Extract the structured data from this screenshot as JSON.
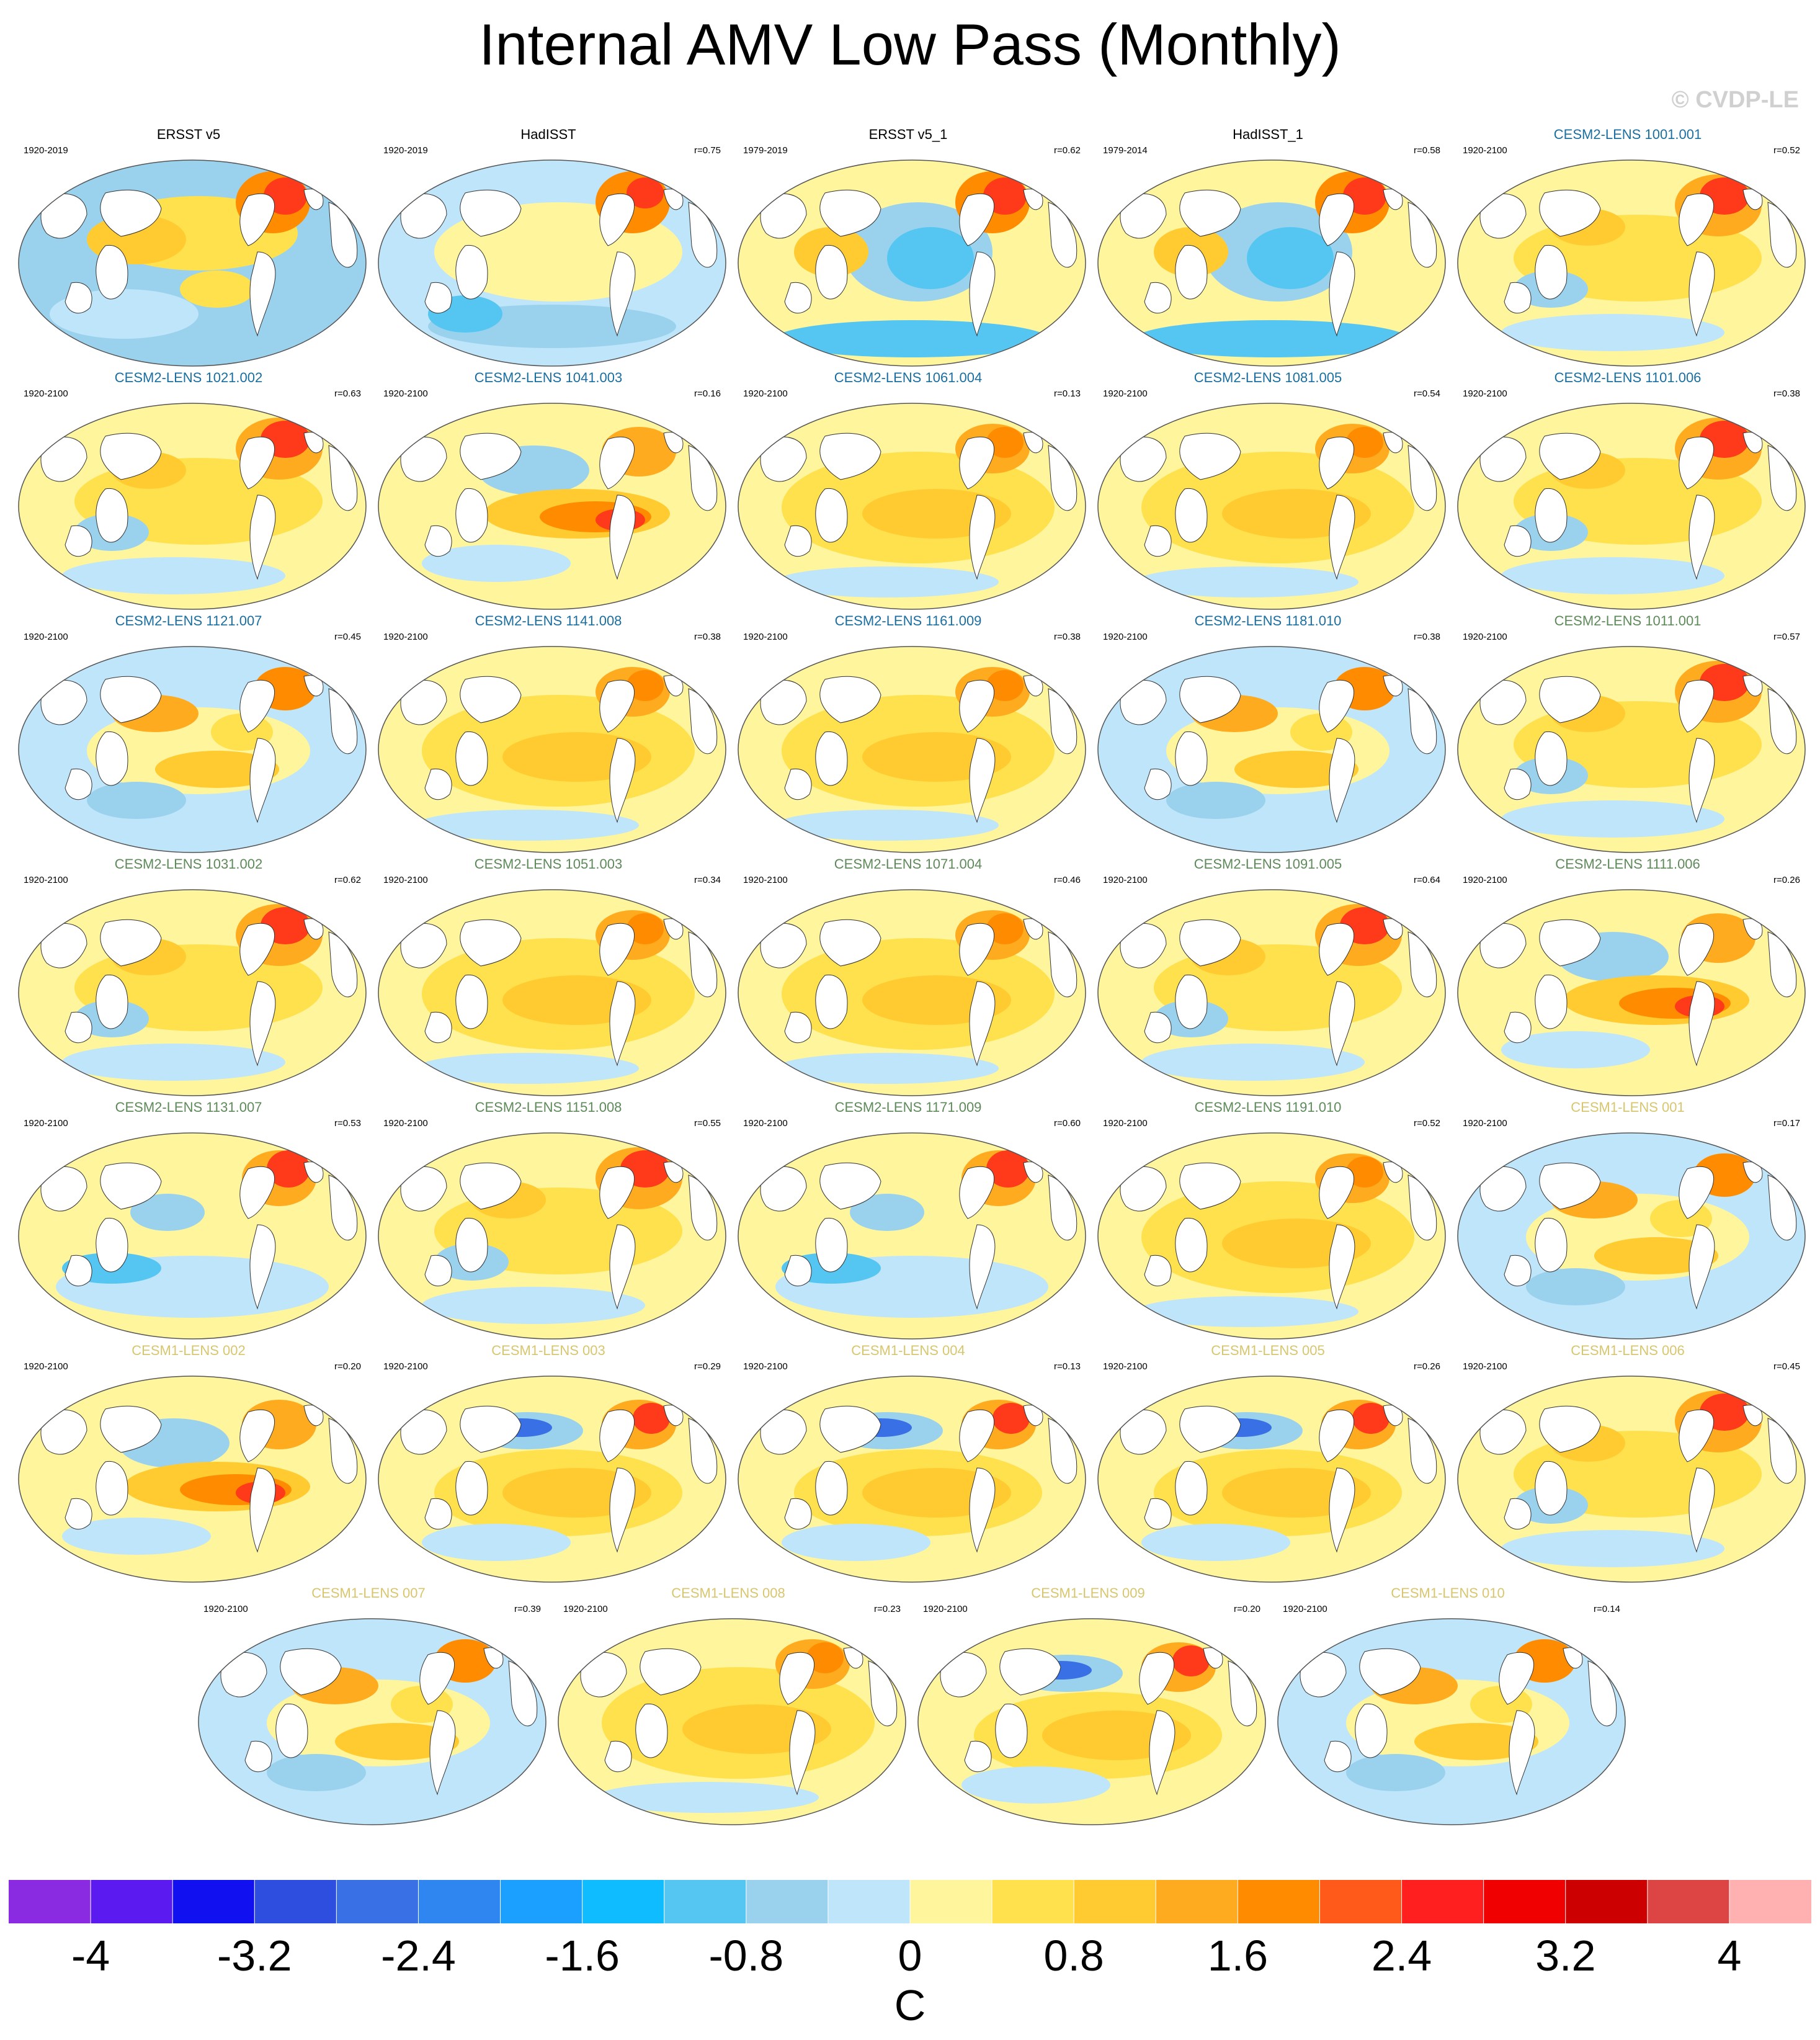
{
  "title": "Internal AMV Low Pass (Monthly)",
  "watermark": "© CVDP-LE",
  "colors": {
    "obs_title": "#000000",
    "cesm2_group_a": "#1a6ea0",
    "cesm2_group_b": "#5e8a5a",
    "cesm1": "#d8c66e"
  },
  "panels": [
    {
      "name": "ERSST v5",
      "years": "1920-2019",
      "r": "",
      "group": "obs",
      "pattern": "obs1"
    },
    {
      "name": "HadISST",
      "years": "1920-2019",
      "r": "r=0.75",
      "group": "obs",
      "pattern": "obs2"
    },
    {
      "name": "ERSST v5_1",
      "years": "1979-2019",
      "r": "r=0.62",
      "group": "obs",
      "pattern": "obs3"
    },
    {
      "name": "HadISST_1",
      "years": "1979-2014",
      "r": "r=0.58",
      "group": "obs",
      "pattern": "obs3"
    },
    {
      "name": "CESM2-LENS 1001.001",
      "years": "1920-2100",
      "r": "r=0.52",
      "group": "cesm2_group_a",
      "pattern": "warmN"
    },
    {
      "name": "CESM2-LENS 1021.002",
      "years": "1920-2100",
      "r": "r=0.63",
      "group": "cesm2_group_a",
      "pattern": "warmN"
    },
    {
      "name": "CESM2-LENS 1041.003",
      "years": "1920-2100",
      "r": "r=0.16",
      "group": "cesm2_group_a",
      "pattern": "enso"
    },
    {
      "name": "CESM2-LENS 1061.004",
      "years": "1920-2100",
      "r": "r=0.13",
      "group": "cesm2_group_a",
      "pattern": "warm"
    },
    {
      "name": "CESM2-LENS 1081.005",
      "years": "1920-2100",
      "r": "r=0.54",
      "group": "cesm2_group_a",
      "pattern": "warm"
    },
    {
      "name": "CESM2-LENS 1101.006",
      "years": "1920-2100",
      "r": "r=0.38",
      "group": "cesm2_group_a",
      "pattern": "warmN"
    },
    {
      "name": "CESM2-LENS 1121.007",
      "years": "1920-2100",
      "r": "r=0.45",
      "group": "cesm2_group_a",
      "pattern": "mixed"
    },
    {
      "name": "CESM2-LENS 1141.008",
      "years": "1920-2100",
      "r": "r=0.38",
      "group": "cesm2_group_a",
      "pattern": "warm"
    },
    {
      "name": "CESM2-LENS 1161.009",
      "years": "1920-2100",
      "r": "r=0.38",
      "group": "cesm2_group_a",
      "pattern": "warm"
    },
    {
      "name": "CESM2-LENS 1181.010",
      "years": "1920-2100",
      "r": "r=0.38",
      "group": "cesm2_group_a",
      "pattern": "mixed"
    },
    {
      "name": "CESM2-LENS 1011.001",
      "years": "1920-2100",
      "r": "r=0.57",
      "group": "cesm2_group_b",
      "pattern": "warmN"
    },
    {
      "name": "CESM2-LENS 1031.002",
      "years": "1920-2100",
      "r": "r=0.62",
      "group": "cesm2_group_b",
      "pattern": "warmN"
    },
    {
      "name": "CESM2-LENS 1051.003",
      "years": "1920-2100",
      "r": "r=0.34",
      "group": "cesm2_group_b",
      "pattern": "warm"
    },
    {
      "name": "CESM2-LENS 1071.004",
      "years": "1920-2100",
      "r": "r=0.46",
      "group": "cesm2_group_b",
      "pattern": "warm"
    },
    {
      "name": "CESM2-LENS 1091.005",
      "years": "1920-2100",
      "r": "r=0.64",
      "group": "cesm2_group_b",
      "pattern": "warmN"
    },
    {
      "name": "CESM2-LENS 1111.006",
      "years": "1920-2100",
      "r": "r=0.26",
      "group": "cesm2_group_b",
      "pattern": "enso"
    },
    {
      "name": "CESM2-LENS 1131.007",
      "years": "1920-2100",
      "r": "r=0.53",
      "group": "cesm2_group_b",
      "pattern": "coolS"
    },
    {
      "name": "CESM2-LENS 1151.008",
      "years": "1920-2100",
      "r": "r=0.55",
      "group": "cesm2_group_b",
      "pattern": "warmN"
    },
    {
      "name": "CESM2-LENS 1171.009",
      "years": "1920-2100",
      "r": "r=0.60",
      "group": "cesm2_group_b",
      "pattern": "coolS"
    },
    {
      "name": "CESM2-LENS 1191.010",
      "years": "1920-2100",
      "r": "r=0.52",
      "group": "cesm2_group_b",
      "pattern": "warm"
    },
    {
      "name": "CESM1-LENS 001",
      "years": "1920-2100",
      "r": "r=0.17",
      "group": "cesm1",
      "pattern": "mixed"
    },
    {
      "name": "CESM1-LENS 002",
      "years": "1920-2100",
      "r": "r=0.20",
      "group": "cesm1",
      "pattern": "enso"
    },
    {
      "name": "CESM1-LENS 003",
      "years": "1920-2100",
      "r": "r=0.29",
      "group": "cesm1",
      "pattern": "coolNP"
    },
    {
      "name": "CESM1-LENS 004",
      "years": "1920-2100",
      "r": "r=0.13",
      "group": "cesm1",
      "pattern": "coolNP"
    },
    {
      "name": "CESM1-LENS 005",
      "years": "1920-2100",
      "r": "r=0.26",
      "group": "cesm1",
      "pattern": "coolNP"
    },
    {
      "name": "CESM1-LENS 006",
      "years": "1920-2100",
      "r": "r=0.45",
      "group": "cesm1",
      "pattern": "warmN"
    },
    {
      "name": "CESM1-LENS 007",
      "years": "1920-2100",
      "r": "r=0.39",
      "group": "cesm1",
      "pattern": "mixed"
    },
    {
      "name": "CESM1-LENS 008",
      "years": "1920-2100",
      "r": "r=0.23",
      "group": "cesm1",
      "pattern": "warm"
    },
    {
      "name": "CESM1-LENS 009",
      "years": "1920-2100",
      "r": "r=0.20",
      "group": "cesm1",
      "pattern": "coolNP"
    },
    {
      "name": "CESM1-LENS 010",
      "years": "1920-2100",
      "r": "r=0.14",
      "group": "cesm1",
      "pattern": "mixed"
    }
  ],
  "colorbar": {
    "colors": [
      "#8a2be2",
      "#5a1af0",
      "#1010f0",
      "#2e4ee0",
      "#3a70e6",
      "#2f86f0",
      "#1ca0ff",
      "#0fbcff",
      "#55c6f2",
      "#9ad2ee",
      "#bfe5fa",
      "#fff59d",
      "#ffe14d",
      "#ffcb30",
      "#ffab1f",
      "#ff8c00",
      "#ff5a1a",
      "#ff1f1f",
      "#f00000",
      "#cc0000",
      "#dd4444",
      "#ffb0b0"
    ],
    "ticks": [
      "-4",
      "-3.2",
      "-2.4",
      "-1.6",
      "-0.8",
      "0",
      "0.8",
      "1.6",
      "2.4",
      "3.2",
      "4"
    ],
    "units": "C"
  }
}
